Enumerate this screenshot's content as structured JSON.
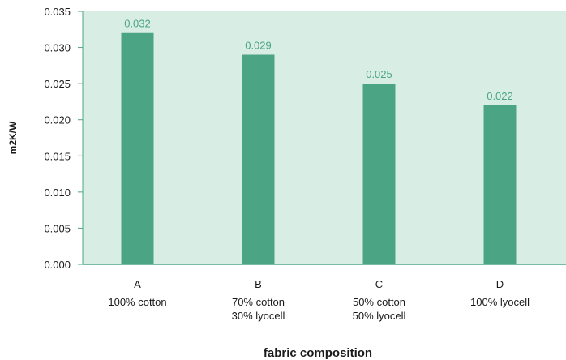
{
  "chart_data": {
    "type": "bar",
    "categories": [
      {
        "code": "A",
        "lines": [
          "100% cotton"
        ]
      },
      {
        "code": "B",
        "lines": [
          "70% cotton",
          "30% lyocell"
        ]
      },
      {
        "code": "C",
        "lines": [
          "50% cotton",
          "50% lyocell"
        ]
      },
      {
        "code": "D",
        "lines": [
          "100% lyocell"
        ]
      }
    ],
    "values": [
      0.032,
      0.029,
      0.025,
      0.022
    ],
    "data_labels": [
      "0.032",
      "0.029",
      "0.025",
      "0.022"
    ],
    "xlabel": "fabric composition",
    "ylabel": "m2K/W",
    "ylim": [
      0,
      0.035
    ],
    "yticks": [
      "0.000",
      "0.005",
      "0.010",
      "0.015",
      "0.020",
      "0.025",
      "0.030",
      "0.035"
    ],
    "grid": false,
    "colors": {
      "plot_background": "#d8ede4",
      "bar": "#4ba584",
      "data_label": "#4ba584",
      "axis": "#4ba584"
    }
  }
}
